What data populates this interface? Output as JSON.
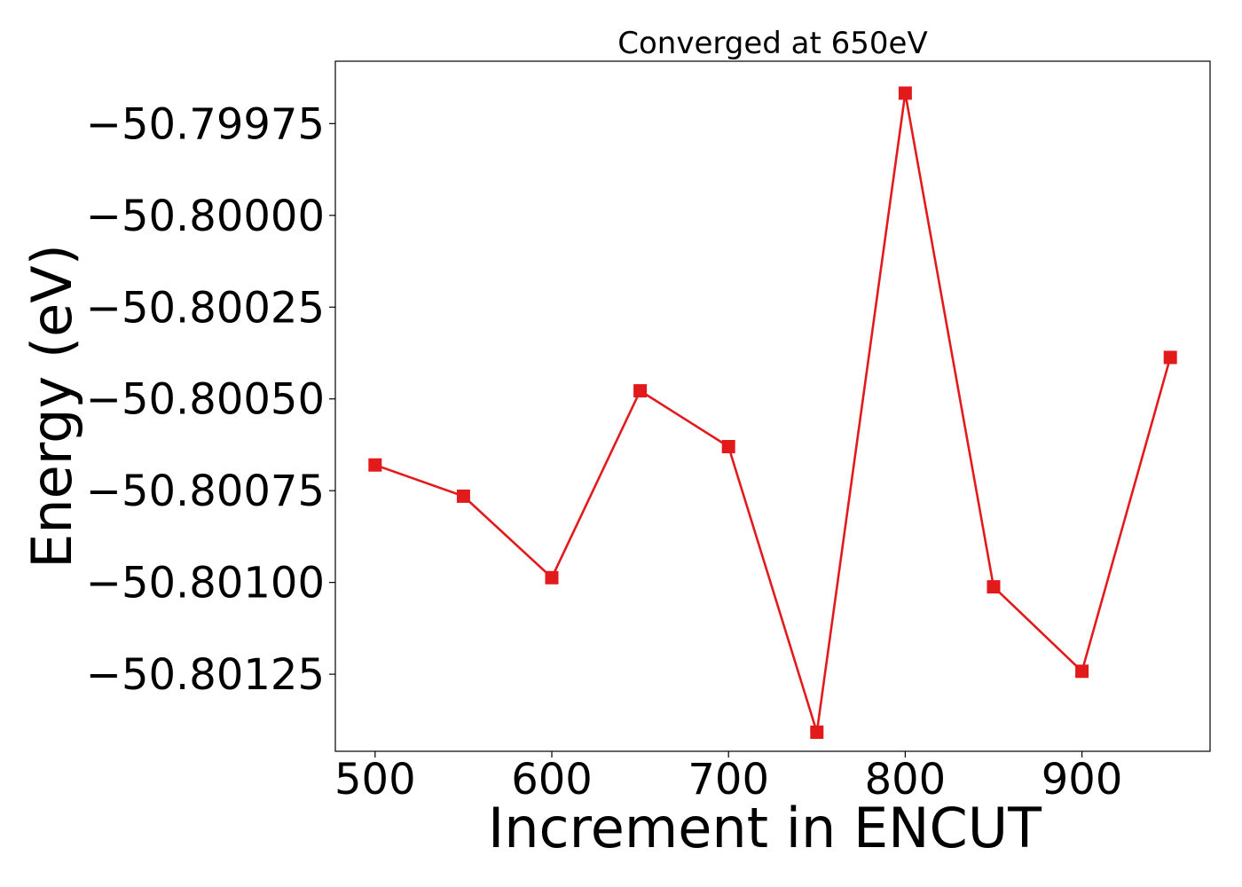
{
  "chart_data": {
    "type": "line",
    "title": "Converged at 650eV",
    "xlabel": "Increment in ENCUT",
    "ylabel": "Energy (eV)",
    "x": [
      500,
      550,
      600,
      650,
      700,
      750,
      800,
      850,
      900,
      950
    ],
    "series": [
      {
        "values": [
          -50.80068,
          -50.800765,
          -50.800987,
          -50.800478,
          -50.80063,
          -50.801408,
          -50.799667,
          -50.801012,
          -50.801242,
          -50.800387
        ],
        "color": "#e31a1c",
        "marker": "square"
      }
    ],
    "xlim": [
      477.5,
      972.5
    ],
    "ylim": [
      -50.80146,
      -50.79958
    ],
    "xticks": [
      500,
      600,
      700,
      800,
      900
    ],
    "xtick_labels": [
      "500",
      "600",
      "700",
      "800",
      "900"
    ],
    "yticks": [
      -50.79975,
      -50.8,
      -50.80025,
      -50.8005,
      -50.80075,
      -50.801,
      -50.80125
    ],
    "ytick_labels": [
      "−50.79975",
      "−50.80000",
      "−50.80025",
      "−50.80050",
      "−50.80075",
      "−50.80100",
      "−50.80125"
    ],
    "grid": false,
    "legend": "none"
  }
}
